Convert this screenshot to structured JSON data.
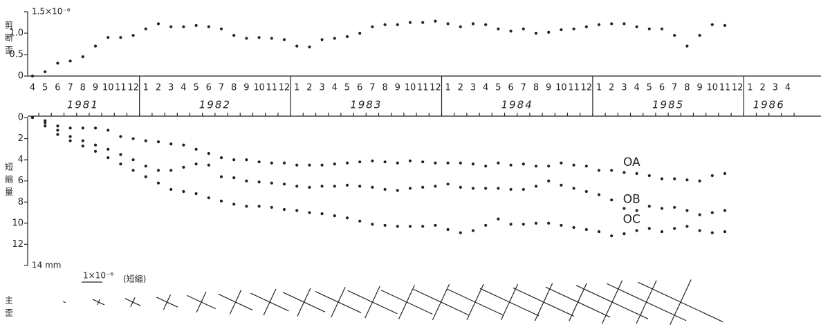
{
  "chart_data": [
    {
      "type": "dots",
      "title": "剪断歪",
      "color": "#222222",
      "categories": [
        "4",
        "5",
        "6",
        "7",
        "8",
        "9",
        "10",
        "11",
        "12",
        "1",
        "2",
        "3",
        "4",
        "5",
        "6",
        "7",
        "8",
        "9",
        "10",
        "11",
        "12",
        "1",
        "2",
        "3",
        "4",
        "5",
        "6",
        "7",
        "8",
        "9",
        "10",
        "11",
        "12",
        "1",
        "2",
        "3",
        "4",
        "5",
        "6",
        "7",
        "8",
        "9",
        "10",
        "11",
        "12",
        "1",
        "2",
        "3",
        "4",
        "5",
        "6",
        "7",
        "8",
        "9",
        "10",
        "11",
        "12",
        "1",
        "2",
        "3",
        "4"
      ],
      "years": [
        "1981",
        "1982",
        "1983",
        "1984",
        "1985",
        "1986"
      ],
      "values": [
        0,
        0.1,
        0.3,
        0.35,
        0.45,
        0.7,
        0.9,
        0.9,
        0.95,
        1.1,
        1.22,
        1.15,
        1.15,
        1.18,
        1.15,
        1.1,
        0.95,
        0.88,
        0.9,
        0.88,
        0.85,
        0.7,
        0.68,
        0.85,
        0.88,
        0.92,
        1.0,
        1.15,
        1.2,
        1.2,
        1.25,
        1.25,
        1.28,
        1.22,
        1.15,
        1.22,
        1.2,
        1.1,
        1.05,
        1.1,
        1.0,
        1.02,
        1.08,
        1.1,
        1.15,
        1.2,
        1.22,
        1.22,
        1.15,
        1.1,
        1.1,
        0.95,
        0.7,
        0.95,
        1.2,
        1.18,
        null,
        null,
        null,
        null,
        null
      ],
      "ylim": [
        0,
        1.5
      ],
      "yticks": [
        0,
        0.5,
        {
          "value": 1,
          "label": "1.0"
        },
        {
          "value": 1.5,
          "label": "1.5×10⁻⁶"
        }
      ]
    },
    {
      "type": "dots",
      "title": "短縮量",
      "invert_y": true,
      "series": [
        {
          "name": "OA",
          "color": "#222222",
          "values": [
            0,
            0.3,
            0.8,
            1,
            1,
            1,
            1.2,
            1.8,
            2,
            2.2,
            2.3,
            2.5,
            2.6,
            3,
            3.4,
            3.8,
            4,
            4,
            4.2,
            4.3,
            4.3,
            4.5,
            4.5,
            4.5,
            4.4,
            4.3,
            4.2,
            4.1,
            4.2,
            4.3,
            4.1,
            4.2,
            4.3,
            4.3,
            4.3,
            4.4,
            4.6,
            4.3,
            4.5,
            4.4,
            4.6,
            4.6,
            4.3,
            4.5,
            4.6,
            5.0,
            5.0,
            5.2,
            5.3,
            5.5,
            5.8,
            5.8,
            5.9,
            6.0,
            5.5,
            5.3,
            null,
            null,
            null,
            null,
            null
          ]
        },
        {
          "name": "OB",
          "color": "#222222",
          "values": [
            0,
            0.5,
            1.2,
            1.8,
            2.2,
            2.6,
            3,
            3.5,
            4,
            4.6,
            5,
            5,
            4.7,
            4.4,
            4.5,
            5.6,
            5.7,
            6,
            6.1,
            6.2,
            6.3,
            6.5,
            6.6,
            6.5,
            6.5,
            6.4,
            6.5,
            6.6,
            6.8,
            6.9,
            6.7,
            6.6,
            6.5,
            6.3,
            6.6,
            6.7,
            6.7,
            6.7,
            6.8,
            6.8,
            6.5,
            6.0,
            6.4,
            6.7,
            7.0,
            7.3,
            7.8,
            8.6,
            8.8,
            8.4,
            8.6,
            8.5,
            8.8,
            9.2,
            9.0,
            8.8,
            null,
            null,
            null,
            null,
            null
          ]
        },
        {
          "name": "OC",
          "color": "#222222",
          "values": [
            0,
            0.8,
            1.6,
            2.2,
            2.7,
            3.2,
            3.8,
            4.4,
            5,
            5.6,
            6.2,
            6.8,
            7,
            7.2,
            7.6,
            7.9,
            8.2,
            8.4,
            8.4,
            8.5,
            8.7,
            8.8,
            9,
            9.1,
            9.3,
            9.5,
            9.8,
            10.1,
            10.2,
            10.3,
            10.3,
            10.3,
            10.2,
            10.6,
            10.9,
            10.7,
            10.2,
            9.6,
            10.1,
            10.1,
            10.0,
            10.0,
            10.2,
            10.4,
            10.6,
            10.8,
            11.2,
            11,
            10.7,
            10.5,
            10.8,
            10.5,
            10.3,
            10.7,
            10.9,
            10.8,
            null,
            null,
            null,
            null,
            null
          ]
        }
      ],
      "ylim": [
        0,
        14
      ],
      "yticks": [
        0,
        2,
        4,
        6,
        8,
        10,
        12,
        {
          "value": 14,
          "label": "14 mm"
        }
      ]
    },
    {
      "type": "cross",
      "title": "主歪",
      "color": "#222222",
      "scale_value": 1,
      "scale_label": "1×10⁻⁶",
      "scale_note": "(短縮)",
      "compression": [
        0.1,
        0.6,
        0.8,
        1.1,
        1.5,
        1.8,
        2.0,
        2.2,
        2.4,
        2.6,
        2.7,
        2.9,
        3.0,
        3.1,
        3.2,
        3.4,
        3.8,
        4.2,
        4.5
      ],
      "extension": [
        0,
        0.3,
        0.5,
        0.8,
        1.1,
        1.3,
        1.4,
        1.5,
        1.6,
        1.7,
        1.8,
        1.9,
        1.9,
        1.9,
        2.0,
        2.0,
        2.3,
        2.3,
        2.4
      ]
    }
  ]
}
